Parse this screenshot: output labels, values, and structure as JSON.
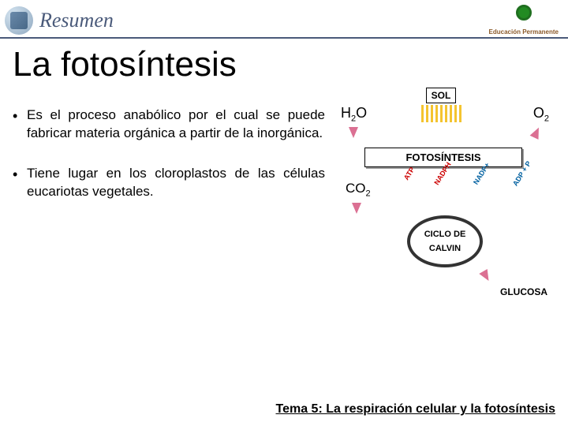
{
  "header": {
    "section_title": "Resumen",
    "brand": "Educación Permanente"
  },
  "title": "La fotosíntesis",
  "bullets": [
    "Es el proceso anabólico por el cual se puede fabricar materia orgánica a partir de la inorgánica.",
    "Tiene lugar en los cloroplastos de las células eucariotas vegetales."
  ],
  "diagram": {
    "type": "flowchart",
    "h2o_label": "H",
    "h2o_sub": "2",
    "h2o_after": "O",
    "o2_label": "O",
    "o2_sub": "2",
    "co2_label": "CO",
    "co2_sub": "2",
    "sol": "SOL",
    "foto": "FOTOSÍNTESIS",
    "energy": {
      "atp": "ATP",
      "nadph": "NADPH",
      "nadp": "NADP+",
      "adp": "ADP + P"
    },
    "calvin_line1": "CICLO DE",
    "calvin_line2": "CALVIN",
    "glucosa": "GLUCOSA",
    "colors": {
      "sun_ray": "#f4c430",
      "arrow_in": "#db7093",
      "arrow_energy_red": "#c00000",
      "arrow_energy_blue": "#0060a0",
      "ring": "#333333"
    }
  },
  "footer": "Tema 5: La respiración celular y la fotosíntesis"
}
